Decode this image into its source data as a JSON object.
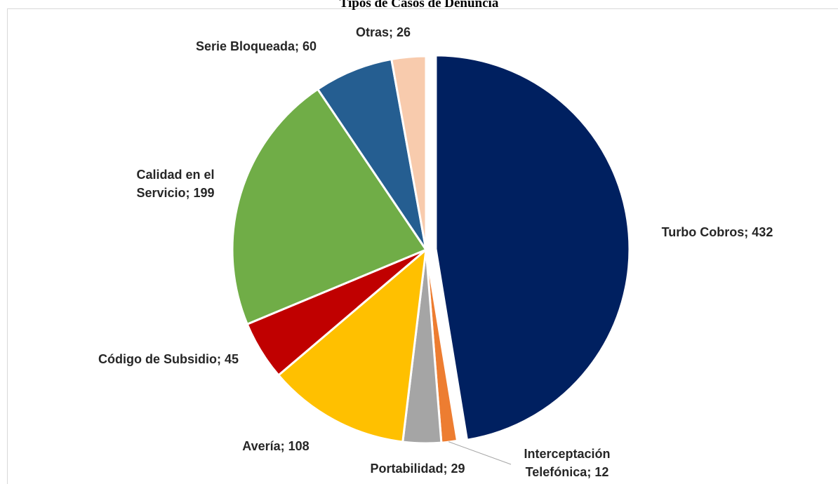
{
  "chart_data": {
    "type": "pie",
    "title": "Tipos de Casos de Denuncia",
    "categories": [
      "Turbo Cobros",
      "Interceptación Telefónica",
      "Portabilidad",
      "Avería",
      "Código de Subsidio",
      "Calidad en el Servicio",
      "Serie Bloqueada",
      "Otras"
    ],
    "values": [
      432,
      12,
      29,
      108,
      45,
      199,
      60,
      26
    ],
    "colors": [
      "#002060",
      "#ED7D31",
      "#A5A5A5",
      "#FFC000",
      "#C00000",
      "#70AD47",
      "#255E91",
      "#F8CBAD"
    ],
    "label_separator": "; "
  }
}
